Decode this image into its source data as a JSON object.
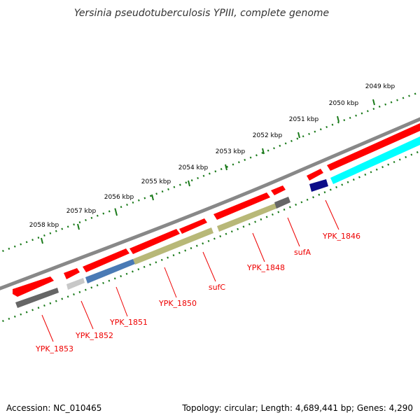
{
  "title": "Yersinia pseudotuberculosis YPIII, complete genome",
  "footer": {
    "accession": "Accession: NC_010465",
    "summary": "Topology: circular; Length: 4,689,441 bp; Genes: 4,290"
  },
  "ticks": [
    "2049 kbp",
    "2050 kbp",
    "2051 kbp",
    "2052 kbp",
    "2053 kbp",
    "2054 kbp",
    "2055 kbp",
    "2056 kbp",
    "2057 kbp",
    "2058 kbp"
  ],
  "colors": {
    "backbone": "#888888",
    "gene_red": "#ff0000",
    "tick_green": "#1a7a1a",
    "label_red": "#ee0000",
    "cds_grey": "#666666",
    "cds_lightgrey": "#c8c8c8",
    "cds_blue": "#4a7ab5",
    "cds_olive": "#b8b878",
    "cds_navy": "#0c0c88",
    "cds_cyan": "#00ffff"
  },
  "gene_labels": [
    {
      "name": "YPK_1853"
    },
    {
      "name": "YPK_1852"
    },
    {
      "name": "YPK_1851"
    },
    {
      "name": "YPK_1850"
    },
    {
      "name": "sufC"
    },
    {
      "name": "YPK_1848"
    },
    {
      "name": "sufA"
    },
    {
      "name": "YPK_1846"
    }
  ]
}
